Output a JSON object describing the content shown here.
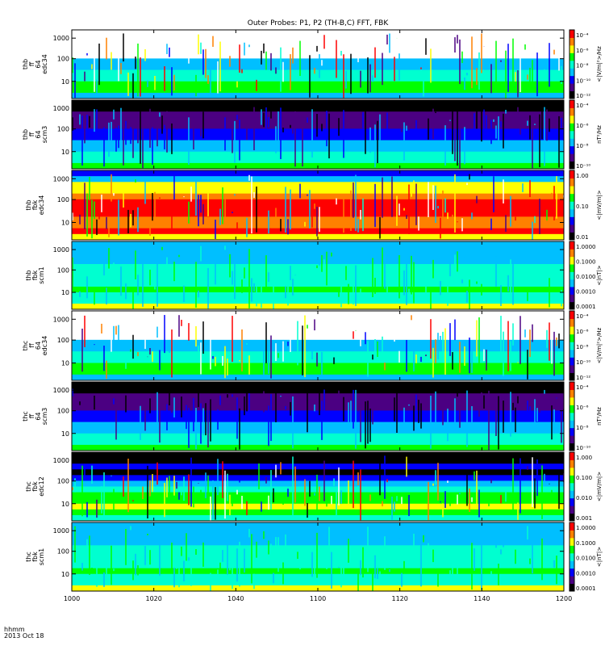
{
  "chart_data": {
    "type": "heatmap",
    "title": "Outer Probes: P1, P2 (TH-B,C) FFT, FBK",
    "x_ticks": [
      "1000",
      "1020",
      "1040",
      "1100",
      "1120",
      "1140",
      "1200"
    ],
    "footer": {
      "hhmm": "hhmm",
      "date": "2013 Oct 18"
    },
    "panels": [
      {
        "ylabels": [
          "thb",
          "ff",
          "64",
          "edc34"
        ],
        "yticks": [
          "1000",
          "100",
          "10"
        ],
        "cb_label": "<|V/m|²>/Hz",
        "cb_ticks": [
          "10⁻⁴",
          "10⁻⁶",
          "10⁻⁸",
          "10⁻¹⁰",
          "10⁻¹²"
        ]
      },
      {
        "ylabels": [
          "thb",
          "ff",
          "64",
          "scm3"
        ],
        "yticks": [
          "1000",
          "100",
          "10"
        ],
        "cb_label": "nT²/Hz",
        "cb_ticks": [
          "10⁻⁴",
          "10⁻⁶",
          "10⁻⁸",
          "10⁻¹⁰"
        ]
      },
      {
        "ylabels": [
          "thb",
          "fbk",
          "edc34"
        ],
        "yticks": [
          "1000",
          "100",
          "10"
        ],
        "cb_label": "<|mV/m|>",
        "cb_ticks": [
          "1.00",
          "0.10",
          "0.01"
        ]
      },
      {
        "ylabels": [
          "thb",
          "fbk",
          "scm1"
        ],
        "yticks": [
          "1000",
          "100",
          "10"
        ],
        "cb_label": "<|nT|>",
        "cb_ticks": [
          "1.0000",
          "0.1000",
          "0.0100",
          "0.0010",
          "0.0001"
        ]
      },
      {
        "ylabels": [
          "thc",
          "ff",
          "64",
          "edc34"
        ],
        "yticks": [
          "1000",
          "100",
          "10"
        ],
        "cb_label": "<|V/m|²>/Hz",
        "cb_ticks": [
          "10⁻⁴",
          "10⁻⁶",
          "10⁻⁸",
          "10⁻¹⁰",
          "10⁻¹²"
        ]
      },
      {
        "ylabels": [
          "thc",
          "ff",
          "64",
          "scm3"
        ],
        "yticks": [
          "1000",
          "100",
          "10"
        ],
        "cb_label": "nT²/Hz",
        "cb_ticks": [
          "10⁻⁴",
          "10⁻⁶",
          "10⁻⁸",
          "10⁻¹⁰"
        ]
      },
      {
        "ylabels": [
          "thc",
          "fbk",
          "edc12"
        ],
        "yticks": [
          "1000",
          "100",
          "10"
        ],
        "cb_label": "<|mV/m|>",
        "cb_ticks": [
          "1.000",
          "0.100",
          "0.010",
          "0.001"
        ]
      },
      {
        "ylabels": [
          "thc",
          "fbk",
          "scm1"
        ],
        "yticks": [
          "1000",
          "100",
          "10"
        ],
        "cb_label": "<|nT|>",
        "cb_ticks": [
          "1.0000",
          "0.1000",
          "0.0100",
          "0.0010",
          "0.0001"
        ]
      }
    ],
    "colorscale": [
      "#000000",
      "#4b0082",
      "#0000ff",
      "#00bfff",
      "#00ffd0",
      "#00ff00",
      "#ffff00",
      "#ff8000",
      "#ff0000",
      "#ffffff"
    ]
  }
}
